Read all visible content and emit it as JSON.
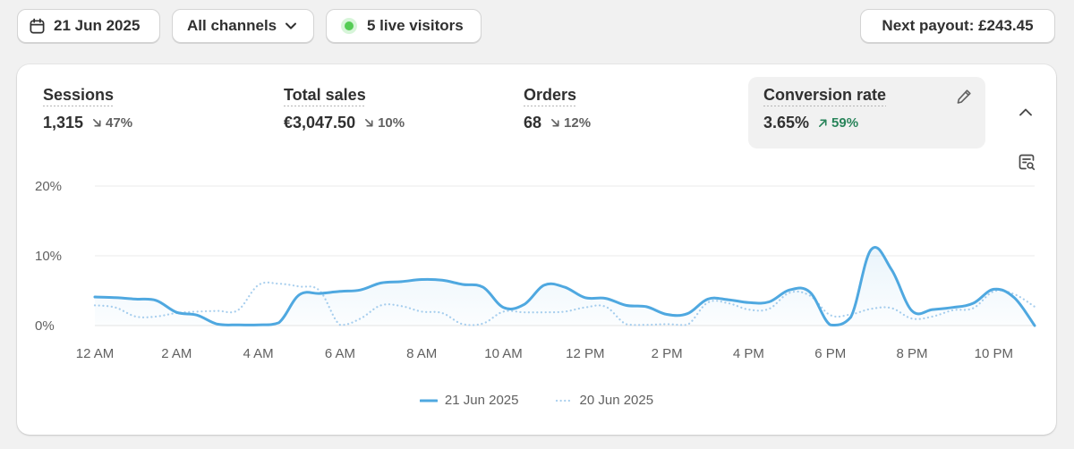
{
  "topbar": {
    "date_label": "21 Jun 2025",
    "channels_label": "All channels",
    "live_label": "5 live visitors",
    "payout_label": "Next payout: £243.45"
  },
  "metrics": [
    {
      "label": "Sessions",
      "value": "1,315",
      "change": "47%",
      "direction": "down"
    },
    {
      "label": "Total sales",
      "value": "€3,047.50",
      "change": "10%",
      "direction": "down"
    },
    {
      "label": "Orders",
      "value": "68",
      "change": "12%",
      "direction": "down"
    },
    {
      "label": "Conversion rate",
      "value": "3.65%",
      "change": "59%",
      "direction": "up",
      "active": true
    }
  ],
  "icons": {
    "calendar": "calendar-icon",
    "chevron": "chevron-down-icon",
    "edit": "pencil-icon",
    "collapse": "chevron-up-icon",
    "explore": "chart-search-icon"
  },
  "colors": {
    "series_current": "#4fa8e0",
    "series_previous": "#a9cfee",
    "live_dot": "#55cc55",
    "positive": "#29845a"
  },
  "chart_data": {
    "type": "line",
    "ylabel": "",
    "xlabel": "",
    "y_ticks": [
      "20%",
      "10%",
      "0%"
    ],
    "ylim": [
      0,
      20
    ],
    "x_ticks": [
      "12 AM",
      "2 AM",
      "4 AM",
      "6 AM",
      "8 AM",
      "10 AM",
      "12 PM",
      "2 PM",
      "4 PM",
      "6 PM",
      "8 PM",
      "10 PM"
    ],
    "x_range_hours": [
      0,
      23
    ],
    "grid": true,
    "legend_position": "bottom-center",
    "series": [
      {
        "name": "21 Jun 2025",
        "style": "solid",
        "points": [
          [
            0,
            4.1
          ],
          [
            0.5,
            4.0
          ],
          [
            1,
            3.8
          ],
          [
            1.5,
            3.6
          ],
          [
            2,
            1.9
          ],
          [
            2.5,
            1.5
          ],
          [
            3,
            0.2
          ],
          [
            3.5,
            0.1
          ],
          [
            4,
            0.1
          ],
          [
            4.5,
            0.4
          ],
          [
            5,
            4.4
          ],
          [
            5.5,
            4.6
          ],
          [
            6,
            4.9
          ],
          [
            6.5,
            5.1
          ],
          [
            7,
            6.1
          ],
          [
            7.5,
            6.3
          ],
          [
            8,
            6.6
          ],
          [
            8.5,
            6.5
          ],
          [
            9,
            5.9
          ],
          [
            9.5,
            5.5
          ],
          [
            10,
            2.6
          ],
          [
            10.5,
            3.0
          ],
          [
            11,
            5.8
          ],
          [
            11.5,
            5.5
          ],
          [
            12,
            4.0
          ],
          [
            12.5,
            3.9
          ],
          [
            13,
            2.9
          ],
          [
            13.5,
            2.7
          ],
          [
            14,
            1.6
          ],
          [
            14.5,
            1.7
          ],
          [
            15,
            3.8
          ],
          [
            15.5,
            3.7
          ],
          [
            16,
            3.3
          ],
          [
            16.5,
            3.4
          ],
          [
            17,
            5.1
          ],
          [
            17.5,
            4.8
          ],
          [
            18,
            0.1
          ],
          [
            18.5,
            1.2
          ],
          [
            19,
            10.9
          ],
          [
            19.5,
            8.0
          ],
          [
            20,
            2.1
          ],
          [
            20.5,
            2.3
          ],
          [
            21,
            2.6
          ],
          [
            21.5,
            3.2
          ],
          [
            22,
            5.2
          ],
          [
            22.5,
            4.0
          ],
          [
            23,
            0
          ]
        ]
      },
      {
        "name": "20 Jun 2025",
        "style": "dotted",
        "points": [
          [
            0,
            2.9
          ],
          [
            0.5,
            2.6
          ],
          [
            1,
            1.3
          ],
          [
            1.5,
            1.3
          ],
          [
            2,
            1.8
          ],
          [
            2.5,
            2.0
          ],
          [
            3,
            2.1
          ],
          [
            3.5,
            2.2
          ],
          [
            4,
            5.8
          ],
          [
            4.5,
            6.0
          ],
          [
            5,
            5.6
          ],
          [
            5.5,
            5.0
          ],
          [
            6,
            0.1
          ],
          [
            6.5,
            1.0
          ],
          [
            7,
            2.9
          ],
          [
            7.5,
            2.8
          ],
          [
            8,
            2.0
          ],
          [
            8.5,
            1.8
          ],
          [
            9,
            0.2
          ],
          [
            9.5,
            0.3
          ],
          [
            10,
            2.0
          ],
          [
            10.5,
            1.9
          ],
          [
            11,
            1.9
          ],
          [
            11.5,
            2.0
          ],
          [
            12,
            2.6
          ],
          [
            12.5,
            2.7
          ],
          [
            13,
            0.2
          ],
          [
            13.5,
            0.1
          ],
          [
            14,
            0.2
          ],
          [
            14.5,
            0.1
          ],
          [
            15,
            3.3
          ],
          [
            15.5,
            3.2
          ],
          [
            16,
            2.3
          ],
          [
            16.5,
            2.4
          ],
          [
            17,
            4.7
          ],
          [
            17.5,
            4.3
          ],
          [
            18,
            1.5
          ],
          [
            18.5,
            1.6
          ],
          [
            19,
            2.4
          ],
          [
            19.5,
            2.5
          ],
          [
            20,
            1.0
          ],
          [
            20.5,
            1.3
          ],
          [
            21,
            2.2
          ],
          [
            21.5,
            2.5
          ],
          [
            22,
            4.9
          ],
          [
            22.5,
            4.5
          ],
          [
            23,
            2.7
          ]
        ]
      }
    ]
  }
}
